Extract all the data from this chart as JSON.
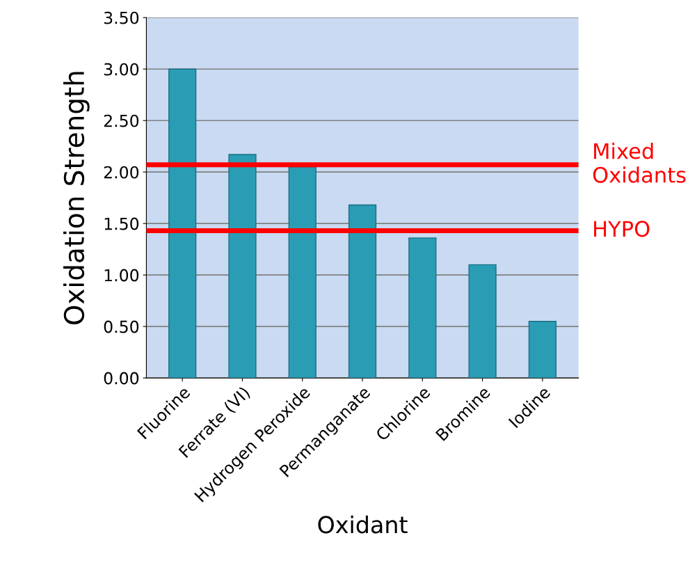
{
  "chart_data": {
    "type": "bar",
    "xlabel": "Oxidant",
    "ylabel": "Oxidation Strength",
    "categories": [
      "Fluorine",
      "Ferrate (VI)",
      "Hydrogen Peroxide",
      "Permanganate",
      "Chlorine",
      "Bromine",
      "Iodine"
    ],
    "values": [
      3.0,
      2.17,
      2.05,
      1.68,
      1.36,
      1.1,
      0.55
    ],
    "color": "#2a9db5",
    "ylim": [
      0,
      3.5
    ],
    "yticks": [
      {
        "value": 0,
        "label": "0.00"
      },
      {
        "value": 0.5,
        "label": "0.50"
      },
      {
        "value": 1,
        "label": "1.00"
      },
      {
        "value": 1.5,
        "label": "1.50"
      },
      {
        "value": 2,
        "label": "2.00"
      },
      {
        "value": 2.5,
        "label": "2.50"
      },
      {
        "value": 3,
        "label": "3.00"
      },
      {
        "value": 3.5,
        "label": "3.50"
      }
    ],
    "grid": "y",
    "ref_lines": [
      {
        "axis": "y",
        "value": 2.07,
        "label": "Mixed\nOxidants",
        "color": "#ff0000"
      },
      {
        "axis": "y",
        "value": 1.43,
        "label": "HYPO",
        "color": "#ff0000"
      }
    ]
  }
}
